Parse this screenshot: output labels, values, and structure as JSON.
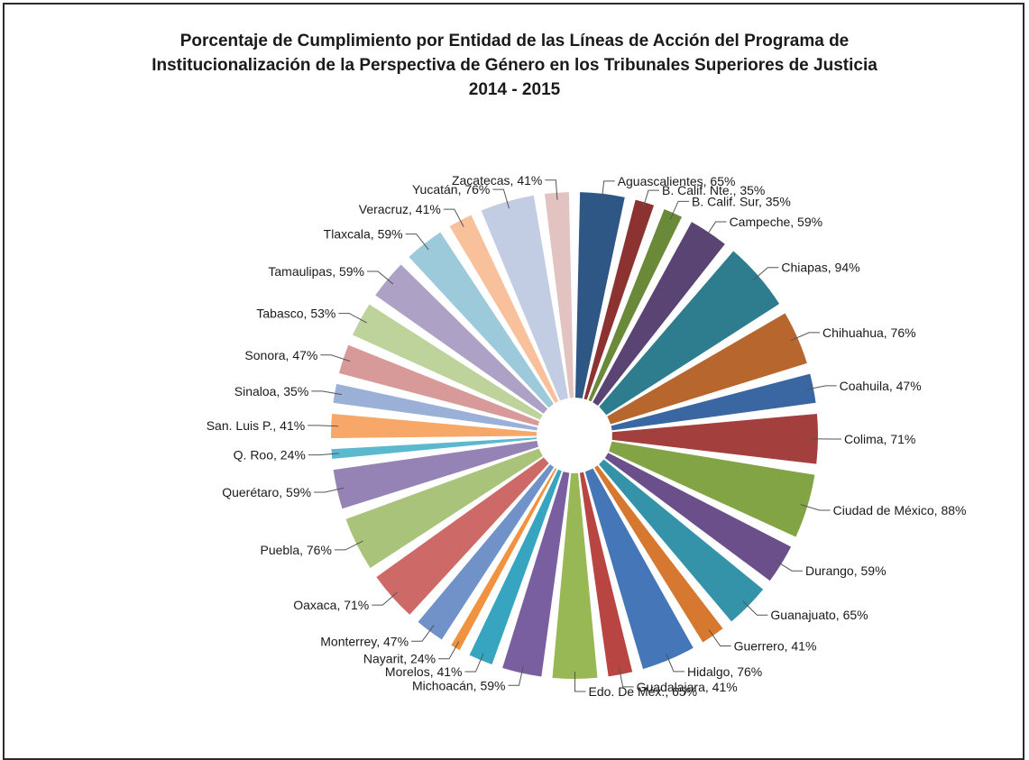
{
  "chart_data": {
    "type": "pie",
    "title_lines": [
      "Porcentaje de Cumplimiento por Entidad de las Líneas de Acción del Programa de",
      "Institucionalización de la Perspectiva de Género en los Tribunales Superiores de Justicia",
      "2014 - 2015"
    ],
    "legend": "none",
    "data_labels": "category, value",
    "slices": [
      {
        "name": "Aguascalientes",
        "value": 65,
        "label": "Aguascalientes, 65%",
        "color": "#2f5786"
      },
      {
        "name": "B. Calif. Nte.",
        "value": 35,
        "label": "B. Calif. Nte., 35%",
        "color": "#8c3331"
      },
      {
        "name": "B. Calif. Sur",
        "value": 35,
        "label": "B. Calif. Sur, 35%",
        "color": "#6a8a3a"
      },
      {
        "name": "Campeche",
        "value": 59,
        "label": "Campeche, 59%",
        "color": "#5a4474"
      },
      {
        "name": "Chiapas",
        "value": 94,
        "label": "Chiapas, 94%",
        "color": "#2d7d8f"
      },
      {
        "name": "Chihuahua",
        "value": 76,
        "label": "Chihuahua, 76%",
        "color": "#b7672d"
      },
      {
        "name": "Coahuila",
        "value": 47,
        "label": "Coahuila, 47%",
        "color": "#3a66a1"
      },
      {
        "name": "Colima",
        "value": 71,
        "label": "Colima, 71%",
        "color": "#a33f3c"
      },
      {
        "name": "Ciudad de México",
        "value": 88,
        "label": "Ciudad de México, 88%",
        "color": "#83a444"
      },
      {
        "name": "Durango",
        "value": 59,
        "label": "Durango, 59%",
        "color": "#6a4f8a"
      },
      {
        "name": "Guanajuato",
        "value": 65,
        "label": "Guanajuato, 65%",
        "color": "#3493a9"
      },
      {
        "name": "Guerrero",
        "value": 41,
        "label": "Guerrero, 41%",
        "color": "#d6782f"
      },
      {
        "name": "Hidalgo",
        "value": 76,
        "label": "Hidalgo, 76%",
        "color": "#4576b8"
      },
      {
        "name": "Guadalajara",
        "value": 41,
        "label": "Guadalajara, 41%",
        "color": "#b84542"
      },
      {
        "name": "Edo. De Méx.",
        "value": 65,
        "label": "Edo. De Méx., 65%",
        "color": "#97b854"
      },
      {
        "name": "Michoacán",
        "value": 59,
        "label": "Michoacán, 59%",
        "color": "#7a5fa0"
      },
      {
        "name": "Morelos",
        "value": 41,
        "label": "Morelos, 41%",
        "color": "#37a5bf"
      },
      {
        "name": "Nayarit",
        "value": 24,
        "label": "Nayarit, 24%",
        "color": "#f0923f"
      },
      {
        "name": "Monterrey",
        "value": 47,
        "label": "Monterrey, 47%",
        "color": "#7092c9"
      },
      {
        "name": "Oaxaca",
        "value": 71,
        "label": "Oaxaca, 71%",
        "color": "#cd6a68"
      },
      {
        "name": "Puebla",
        "value": 76,
        "label": "Puebla, 76%",
        "color": "#a9c47a"
      },
      {
        "name": "Querétaro",
        "value": 59,
        "label": "Querétaro, 59%",
        "color": "#9683b5"
      },
      {
        "name": "Q. Roo",
        "value": 24,
        "label": "Q. Roo, 24%",
        "color": "#5bb8cf"
      },
      {
        "name": "San. Luis P.",
        "value": 41,
        "label": "San. Luis P., 41%",
        "color": "#f7a868"
      },
      {
        "name": "Sinaloa",
        "value": 35,
        "label": "Sinaloa, 35%",
        "color": "#9ab0d6"
      },
      {
        "name": "Sonora",
        "value": 47,
        "label": "Sonora, 47%",
        "color": "#d79a99"
      },
      {
        "name": "Tabasco",
        "value": 53,
        "label": "Tabasco, 53%",
        "color": "#bed39c"
      },
      {
        "name": "Tamaulipas",
        "value": 59,
        "label": "Tamaulipas, 59%",
        "color": "#ada2c6"
      },
      {
        "name": "Tlaxcala",
        "value": 59,
        "label": "Tlaxcala, 59%",
        "color": "#9ccadb"
      },
      {
        "name": "Veracruz",
        "value": 41,
        "label": "Veracruz, 41%",
        "color": "#f9c09c"
      },
      {
        "name": "Yucatán",
        "value": 76,
        "label": "Yucatán, 76%",
        "color": "#c2cde3"
      },
      {
        "name": "Zacatecas",
        "value": 41,
        "label": "Zacatecas, 41%",
        "color": "#e3c2c2"
      }
    ]
  }
}
